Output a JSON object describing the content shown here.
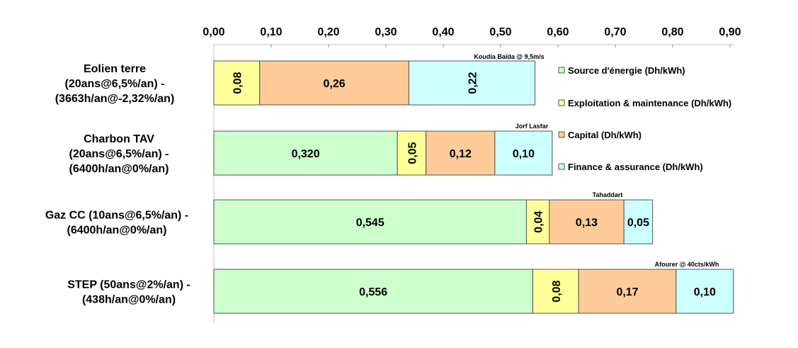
{
  "chart_data": {
    "type": "bar",
    "orientation": "horizontal",
    "stacked": true,
    "xlim": [
      0,
      0.9
    ],
    "x_ticks": [
      "0,00",
      "0,10",
      "0,20",
      "0,30",
      "0,40",
      "0,50",
      "0,60",
      "0,70",
      "0,80",
      "0,90"
    ],
    "categories": [
      [
        "Eolien terre",
        "(20ans@6,5%/an) -",
        "(3663h/an@-2,32%/an)"
      ],
      [
        "Charbon TAV",
        "(20ans@6,5%/an) -",
        "(6400h/an@0%/an)"
      ],
      [
        "Gaz CC (10ans@6,5%/an) -",
        "(6400h/an@0%/an)"
      ],
      [
        "STEP (50ans@2%/an) -",
        "(438h/an@0%/an)"
      ]
    ],
    "series": [
      {
        "name": "Source d'énergie (Dh/kWh)",
        "color": "#ccffcc",
        "values": [
          0,
          0.32,
          0.545,
          0.556
        ],
        "labels": [
          "",
          "0,320",
          "0,545",
          "0,556"
        ]
      },
      {
        "name": "Exploitation & maintenance (Dh/kWh)",
        "color": "#ffff99",
        "values": [
          0.08,
          0.05,
          0.04,
          0.08
        ],
        "labels": [
          "0,08",
          "0,05",
          "0,04",
          "0,08"
        ]
      },
      {
        "name": "Capital (Dh/kWh)",
        "color": "#ffcc99",
        "values": [
          0.26,
          0.12,
          0.13,
          0.17
        ],
        "labels": [
          "0,26",
          "0,12",
          "0,13",
          "0,17"
        ]
      },
      {
        "name": "Finance & assurance (Dh/kWh)",
        "color": "#ccffff",
        "values": [
          0.22,
          0.1,
          0.05,
          0.1
        ],
        "labels": [
          "0,22",
          "0,10",
          "0,05",
          "0,10"
        ]
      }
    ],
    "rotated_labels": [
      [
        false,
        true,
        false,
        true
      ],
      [
        false,
        true,
        false,
        false
      ],
      [
        false,
        true,
        false,
        false
      ],
      [
        false,
        true,
        false,
        false
      ]
    ],
    "annotations": [
      "Koudia Baïda @ 9,5m/s",
      "Jorf Lasfar",
      "Tahaddart",
      "Afourer @ 40cts/kWh"
    ],
    "legend_position": "right",
    "grid": false
  }
}
